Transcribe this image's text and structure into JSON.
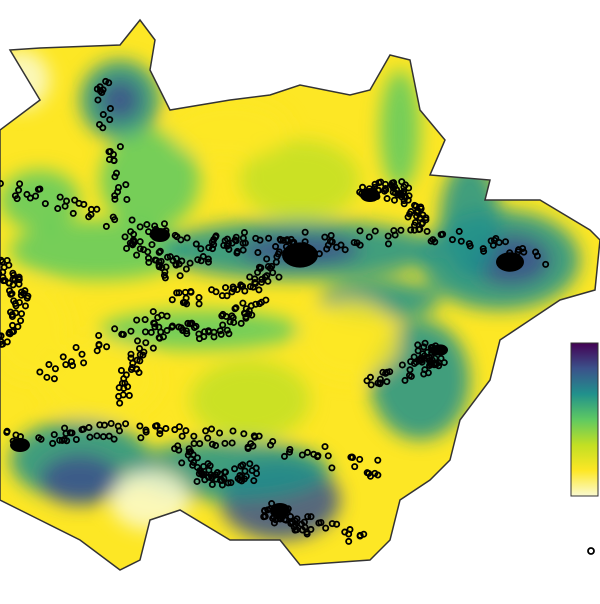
{
  "map": {
    "colorbar": {
      "colors": [
        "#440154",
        "#3b528b",
        "#21918c",
        "#5ec962",
        "#c2df23",
        "#fde725",
        "#fafad2"
      ]
    }
  }
}
